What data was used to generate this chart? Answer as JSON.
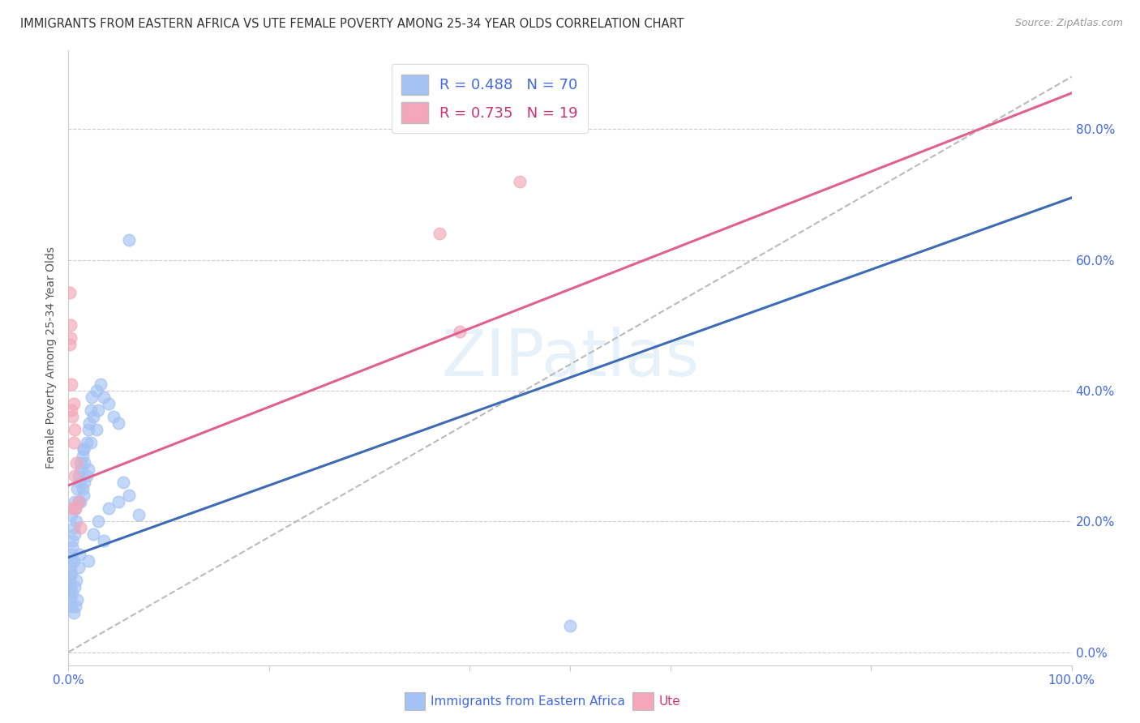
{
  "title": "IMMIGRANTS FROM EASTERN AFRICA VS UTE FEMALE POVERTY AMONG 25-34 YEAR OLDS CORRELATION CHART",
  "source": "Source: ZipAtlas.com",
  "ylabel": "Female Poverty Among 25-34 Year Olds",
  "watermark": "ZIPatlas",
  "blue_label": "Immigrants from Eastern Africa",
  "pink_label": "Ute",
  "blue_R": 0.488,
  "blue_N": 70,
  "pink_R": 0.735,
  "pink_N": 19,
  "blue_color": "#a4c2f4",
  "pink_color": "#f4a7b9",
  "blue_line_color": "#3d6bb5",
  "pink_line_color": "#e06090",
  "dashed_line_color": "#bbbbbb",
  "background_color": "#ffffff",
  "grid_color": "#cccccc",
  "title_color": "#333333",
  "axis_label_color": "#4169e1",
  "pink_text_color": "#cc3377",
  "blue_scatter": [
    [
      0.001,
      0.12
    ],
    [
      0.002,
      0.14
    ],
    [
      0.001,
      0.11
    ],
    [
      0.002,
      0.13
    ],
    [
      0.003,
      0.15
    ],
    [
      0.002,
      0.1
    ],
    [
      0.001,
      0.1
    ],
    [
      0.003,
      0.12
    ],
    [
      0.004,
      0.17
    ],
    [
      0.005,
      0.19
    ],
    [
      0.003,
      0.21
    ],
    [
      0.004,
      0.16
    ],
    [
      0.006,
      0.18
    ],
    [
      0.005,
      0.14
    ],
    [
      0.007,
      0.22
    ],
    [
      0.008,
      0.2
    ],
    [
      0.006,
      0.23
    ],
    [
      0.009,
      0.25
    ],
    [
      0.01,
      0.27
    ],
    [
      0.01,
      0.23
    ],
    [
      0.012,
      0.29
    ],
    [
      0.011,
      0.26
    ],
    [
      0.013,
      0.28
    ],
    [
      0.014,
      0.3
    ],
    [
      0.015,
      0.24
    ],
    [
      0.016,
      0.26
    ],
    [
      0.015,
      0.31
    ],
    [
      0.018,
      0.32
    ],
    [
      0.02,
      0.34
    ],
    [
      0.022,
      0.37
    ],
    [
      0.023,
      0.39
    ],
    [
      0.021,
      0.35
    ],
    [
      0.025,
      0.36
    ],
    [
      0.028,
      0.4
    ],
    [
      0.03,
      0.37
    ],
    [
      0.032,
      0.41
    ],
    [
      0.035,
      0.39
    ],
    [
      0.04,
      0.38
    ],
    [
      0.045,
      0.36
    ],
    [
      0.05,
      0.35
    ],
    [
      0.001,
      0.09
    ],
    [
      0.002,
      0.08
    ],
    [
      0.003,
      0.07
    ],
    [
      0.004,
      0.09
    ],
    [
      0.005,
      0.06
    ],
    [
      0.006,
      0.1
    ],
    [
      0.007,
      0.07
    ],
    [
      0.008,
      0.11
    ],
    [
      0.009,
      0.08
    ],
    [
      0.01,
      0.13
    ],
    [
      0.011,
      0.15
    ],
    [
      0.02,
      0.14
    ],
    [
      0.025,
      0.18
    ],
    [
      0.03,
      0.2
    ],
    [
      0.035,
      0.17
    ],
    [
      0.04,
      0.22
    ],
    [
      0.05,
      0.23
    ],
    [
      0.06,
      0.24
    ],
    [
      0.07,
      0.21
    ],
    [
      0.055,
      0.26
    ],
    [
      0.018,
      0.27
    ],
    [
      0.016,
      0.29
    ],
    [
      0.014,
      0.25
    ],
    [
      0.012,
      0.23
    ],
    [
      0.022,
      0.32
    ],
    [
      0.02,
      0.28
    ],
    [
      0.028,
      0.34
    ],
    [
      0.015,
      0.31
    ],
    [
      0.5,
      0.04
    ],
    [
      0.06,
      0.63
    ]
  ],
  "pink_scatter": [
    [
      0.001,
      0.55
    ],
    [
      0.002,
      0.5
    ],
    [
      0.001,
      0.47
    ],
    [
      0.003,
      0.37
    ],
    [
      0.004,
      0.36
    ],
    [
      0.006,
      0.34
    ],
    [
      0.005,
      0.38
    ],
    [
      0.008,
      0.29
    ],
    [
      0.01,
      0.23
    ],
    [
      0.003,
      0.41
    ],
    [
      0.004,
      0.22
    ],
    [
      0.005,
      0.32
    ],
    [
      0.006,
      0.27
    ],
    [
      0.012,
      0.19
    ],
    [
      0.002,
      0.48
    ],
    [
      0.007,
      0.22
    ],
    [
      0.37,
      0.64
    ],
    [
      0.45,
      0.72
    ],
    [
      0.39,
      0.49
    ]
  ],
  "xlim": [
    0.0,
    1.0
  ],
  "ylim": [
    -0.02,
    0.92
  ],
  "blue_line_params": [
    0.55,
    0.145
  ],
  "pink_line_params": [
    0.6,
    0.255
  ],
  "diag_line": [
    [
      0.0,
      0.0
    ],
    [
      1.0,
      0.88
    ]
  ],
  "xtick_positions": [
    0.0,
    0.2,
    0.4,
    0.5,
    0.6,
    0.8,
    1.0
  ],
  "xtick_labels": [
    "0.0%",
    "",
    "",
    "",
    "",
    "",
    "100.0%"
  ],
  "ytick_positions": [
    0.0,
    0.2,
    0.4,
    0.6,
    0.8
  ],
  "ytick_labels": [
    "0.0%",
    "20.0%",
    "40.0%",
    "60.0%",
    "80.0%"
  ]
}
